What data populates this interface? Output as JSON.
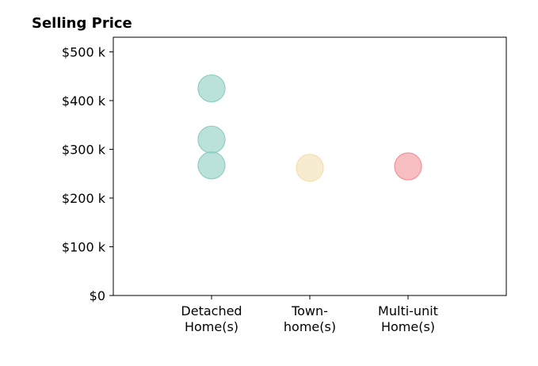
{
  "chart_data": {
    "type": "scatter",
    "title": "Selling Price",
    "xlabel": "",
    "ylabel": "",
    "categories": [
      [
        "Detached",
        "Home(s)"
      ],
      [
        "Town-",
        "home(s)"
      ],
      [
        "Multi-unit",
        "Home(s)"
      ]
    ],
    "yticks": [
      {
        "value": 0,
        "label": "$0"
      },
      {
        "value": 100000,
        "label": "$100 k"
      },
      {
        "value": 200000,
        "label": "$200 k"
      },
      {
        "value": 300000,
        "label": "$300 k"
      },
      {
        "value": 400000,
        "label": "$400 k"
      },
      {
        "value": 500000,
        "label": "$500 k"
      }
    ],
    "ylim": [
      0,
      530000
    ],
    "grid": false,
    "legend": "none",
    "points": [
      {
        "category": 0,
        "y": 425000,
        "color": "#8ecdc3"
      },
      {
        "category": 0,
        "y": 320000,
        "color": "#8ecdc3"
      },
      {
        "category": 0,
        "y": 267000,
        "color": "#8ecdc3"
      },
      {
        "category": 1,
        "y": 262000,
        "color": "#f3dfb0"
      },
      {
        "category": 2,
        "y": 265000,
        "color": "#f29499"
      }
    ]
  }
}
